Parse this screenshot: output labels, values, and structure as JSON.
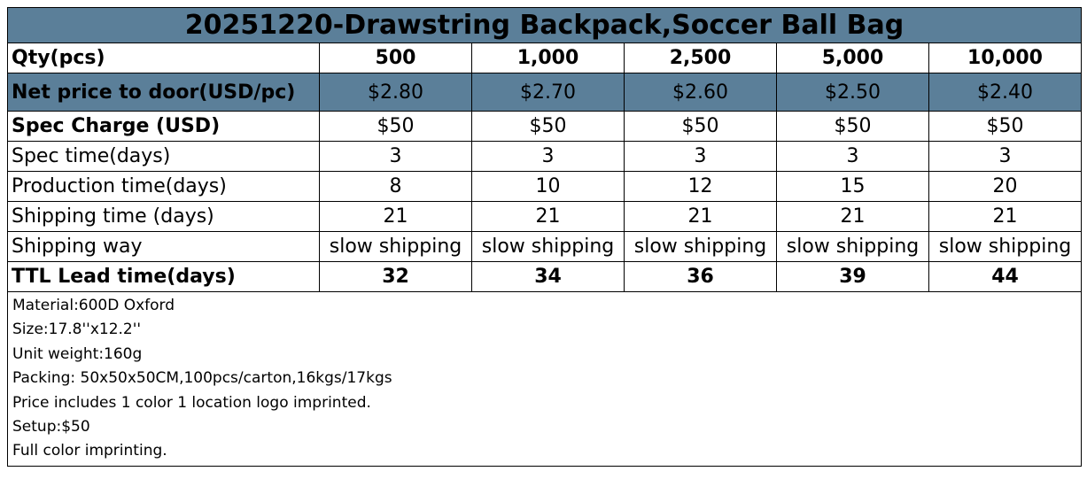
{
  "title": "20251220-Drawstring Backpack,Soccer Ball Bag",
  "header_color": "#5b7f99",
  "rows": {
    "qty": {
      "label": "Qty(pcs)",
      "values": [
        "500",
        "1,000",
        "2,500",
        "5,000",
        "10,000"
      ]
    },
    "net_price": {
      "label": "Net price to door(USD/pc)",
      "values": [
        "$2.80",
        "$2.70",
        "$2.60",
        "$2.50",
        "$2.40"
      ]
    },
    "spec_charge": {
      "label": "Spec Charge (USD)",
      "values": [
        "$50",
        "$50",
        "$50",
        "$50",
        "$50"
      ]
    },
    "spec_time": {
      "label": "Spec time(days)",
      "values": [
        "3",
        "3",
        "3",
        "3",
        "3"
      ]
    },
    "production_time": {
      "label": "Production time(days)",
      "values": [
        "8",
        "10",
        "12",
        "15",
        "20"
      ]
    },
    "shipping_time": {
      "label": "Shipping time (days)",
      "values": [
        "21",
        "21",
        "21",
        "21",
        "21"
      ]
    },
    "shipping_way": {
      "label": "Shipping way",
      "values": [
        "slow shipping",
        "slow shipping",
        "slow shipping",
        "slow shipping",
        "slow shipping"
      ]
    },
    "ttl_lead": {
      "label": "TTL Lead time(days)",
      "values": [
        "32",
        "34",
        "36",
        "39",
        "44"
      ]
    }
  },
  "notes": [
    "Material:600D Oxford",
    "Size:17.8''x12.2''",
    "Unit weight:160g",
    "Packing: 50x50x50CM,100pcs/carton,16kgs/17kgs",
    "Price includes 1 color 1 location logo imprinted.",
    "Setup:$50",
    "Full color imprinting."
  ]
}
